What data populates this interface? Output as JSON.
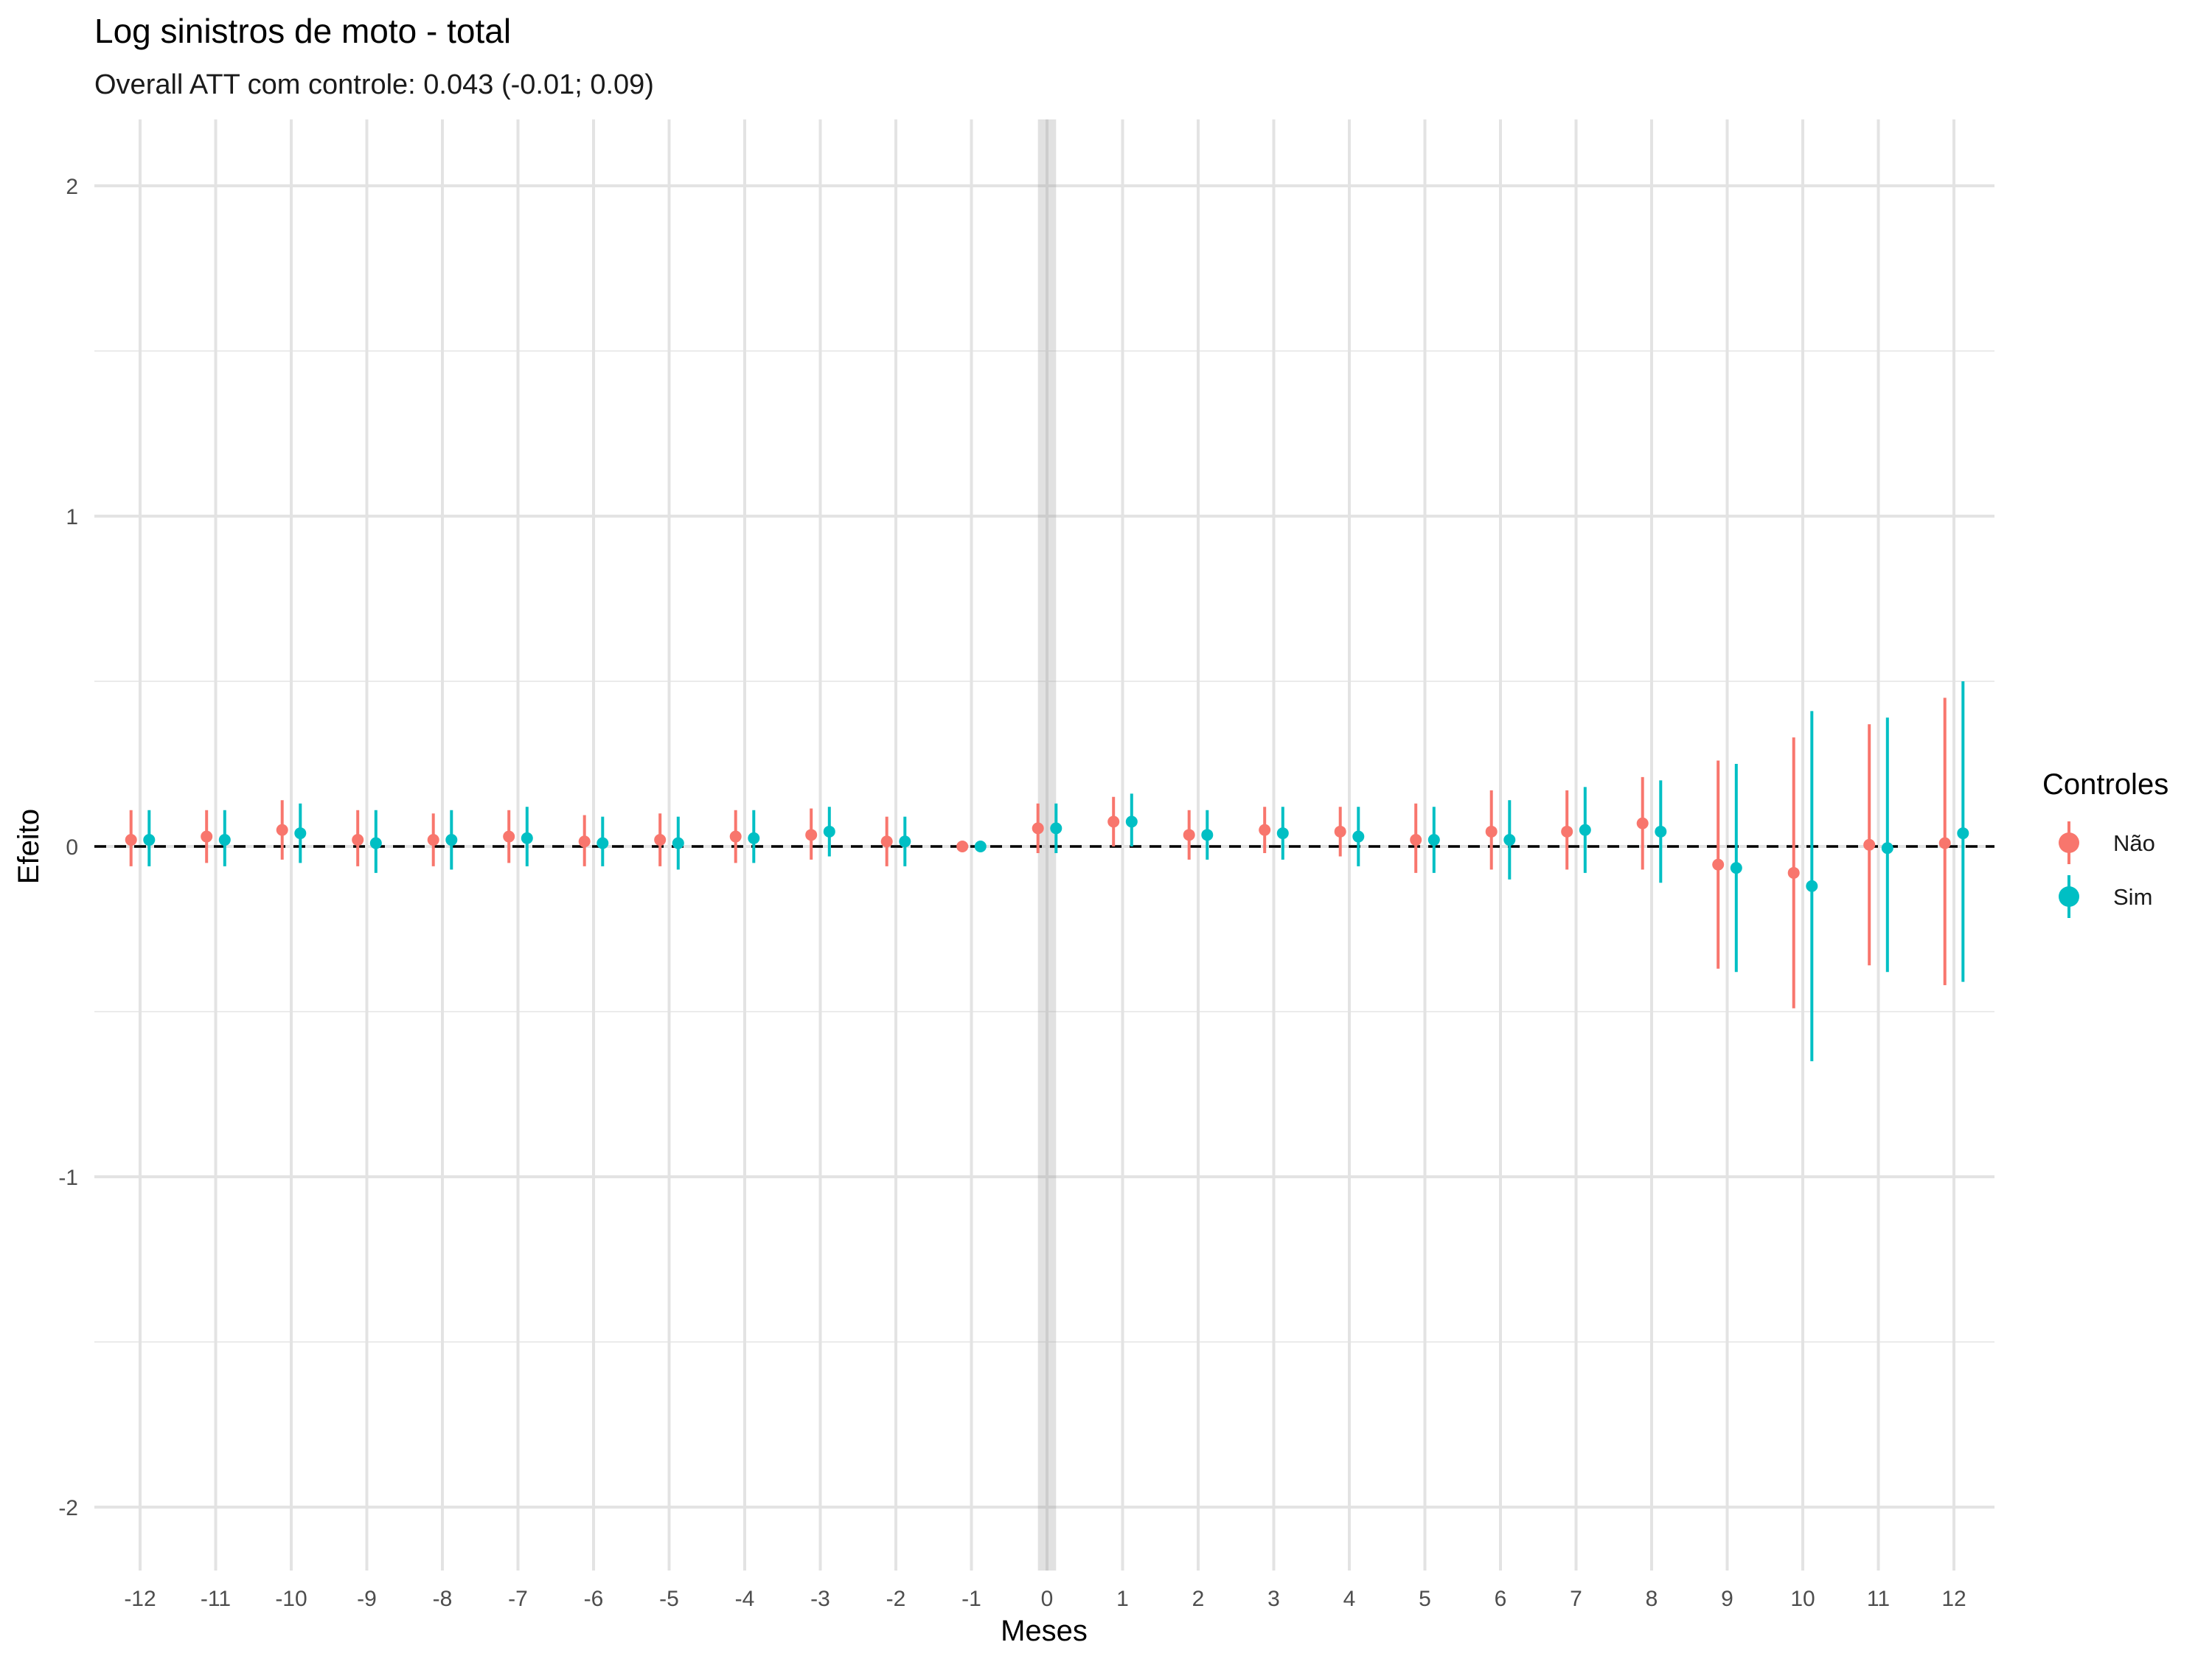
{
  "chart_data": {
    "type": "scatter",
    "subtype": "point-range (event study)",
    "title": "Log sinistros de moto - total",
    "subtitle": "Overall ATT com controle: 0.043 (-0.01; 0.09)",
    "xlabel": "Meses",
    "ylabel": "Efeito",
    "xlim": [
      -12.5,
      12.6
    ],
    "ylim": [
      -2.2,
      2.2
    ],
    "xticks": [
      -12,
      -11,
      -10,
      -9,
      -8,
      -7,
      -6,
      -5,
      -4,
      -3,
      -2,
      -1,
      0,
      1,
      2,
      3,
      4,
      5,
      6,
      7,
      8,
      9,
      10,
      11,
      12
    ],
    "yticks": [
      -2,
      -1,
      0,
      1,
      2
    ],
    "reference_line": {
      "y": 0,
      "style": "dashed"
    },
    "highlight_band": {
      "x": 0,
      "halfwidth": 0.12
    },
    "grid": true,
    "legend": {
      "title": "Controles",
      "position": "right"
    },
    "series": [
      {
        "name": "Não",
        "color": "#F8766D",
        "offset": -0.12,
        "x": [
          -12,
          -11,
          -10,
          -9,
          -8,
          -7,
          -6,
          -5,
          -4,
          -3,
          -2,
          -1,
          0,
          1,
          2,
          3,
          4,
          5,
          6,
          7,
          8,
          9,
          10,
          11,
          12
        ],
        "y": [
          0.02,
          0.03,
          0.05,
          0.02,
          0.02,
          0.03,
          0.015,
          0.02,
          0.03,
          0.035,
          0.015,
          0.0,
          0.055,
          0.075,
          0.035,
          0.05,
          0.045,
          0.02,
          0.045,
          0.045,
          0.07,
          -0.055,
          -0.08,
          0.005,
          0.01
        ],
        "lower": [
          -0.06,
          -0.05,
          -0.04,
          -0.06,
          -0.06,
          -0.05,
          -0.06,
          -0.06,
          -0.05,
          -0.04,
          -0.06,
          0.0,
          -0.02,
          0.0,
          -0.04,
          -0.02,
          -0.03,
          -0.08,
          -0.07,
          -0.07,
          -0.07,
          -0.37,
          -0.49,
          -0.36,
          -0.42
        ],
        "upper": [
          0.11,
          0.11,
          0.14,
          0.11,
          0.1,
          0.11,
          0.095,
          0.1,
          0.11,
          0.115,
          0.09,
          0.0,
          0.13,
          0.15,
          0.11,
          0.12,
          0.12,
          0.13,
          0.17,
          0.17,
          0.21,
          0.26,
          0.33,
          0.37,
          0.45
        ]
      },
      {
        "name": "Sim",
        "color": "#00BFC4",
        "offset": 0.12,
        "x": [
          -12,
          -11,
          -10,
          -9,
          -8,
          -7,
          -6,
          -5,
          -4,
          -3,
          -2,
          -1,
          0,
          1,
          2,
          3,
          4,
          5,
          6,
          7,
          8,
          9,
          10,
          11,
          12
        ],
        "y": [
          0.02,
          0.02,
          0.04,
          0.01,
          0.02,
          0.025,
          0.01,
          0.01,
          0.025,
          0.045,
          0.015,
          0.0,
          0.055,
          0.075,
          0.035,
          0.04,
          0.03,
          0.02,
          0.02,
          0.05,
          0.045,
          -0.065,
          -0.12,
          -0.005,
          0.04
        ],
        "lower": [
          -0.06,
          -0.06,
          -0.05,
          -0.08,
          -0.07,
          -0.06,
          -0.06,
          -0.07,
          -0.05,
          -0.03,
          -0.06,
          0.0,
          -0.02,
          0.0,
          -0.04,
          -0.04,
          -0.06,
          -0.08,
          -0.1,
          -0.08,
          -0.11,
          -0.38,
          -0.65,
          -0.38,
          -0.41
        ],
        "upper": [
          0.11,
          0.11,
          0.13,
          0.11,
          0.11,
          0.12,
          0.09,
          0.09,
          0.11,
          0.12,
          0.09,
          0.0,
          0.13,
          0.16,
          0.11,
          0.12,
          0.12,
          0.12,
          0.14,
          0.18,
          0.2,
          0.25,
          0.41,
          0.39,
          0.5
        ]
      }
    ]
  }
}
